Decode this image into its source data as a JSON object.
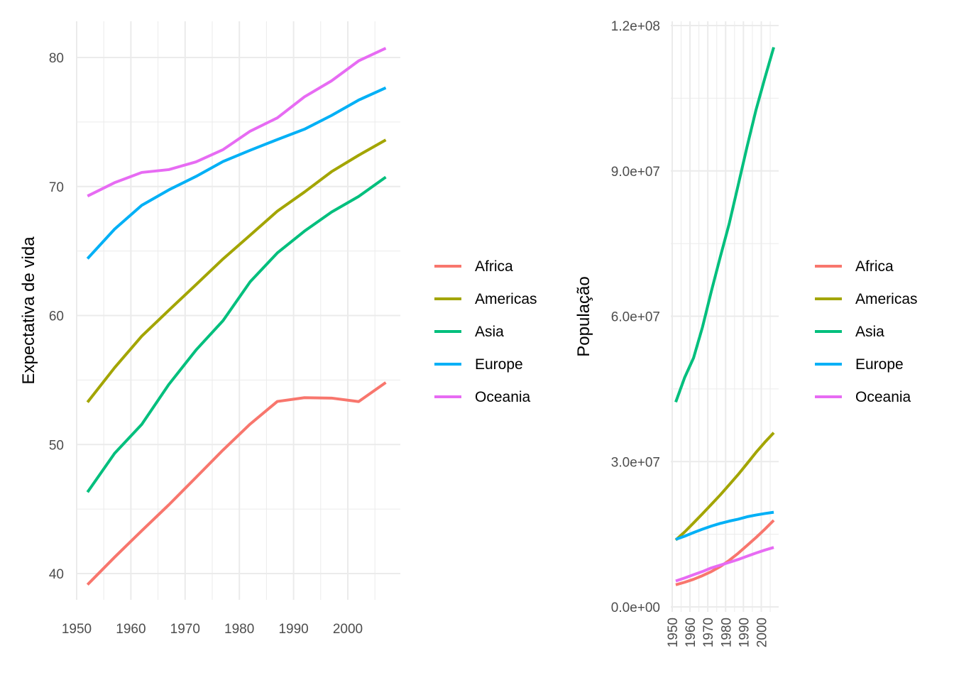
{
  "chart_data": [
    {
      "type": "line",
      "xlabel": "",
      "ylabel": "Expectativa de vida",
      "x": [
        1952,
        1957,
        1962,
        1967,
        1972,
        1977,
        1982,
        1987,
        1992,
        1997,
        2002,
        2007
      ],
      "xticks": [
        1950,
        1960,
        1970,
        1980,
        1990,
        2000
      ],
      "yticks": [
        40,
        50,
        60,
        70,
        80
      ],
      "xlim": [
        1949,
        2010
      ],
      "ylim": [
        37.3,
        82.6
      ],
      "grid": true,
      "legend": "right",
      "series": [
        {
          "name": "Africa",
          "color": "#F8766D",
          "values": [
            39.14,
            41.27,
            43.32,
            45.33,
            47.45,
            49.58,
            51.59,
            53.34,
            53.63,
            53.6,
            53.33,
            54.81
          ]
        },
        {
          "name": "Americas",
          "color": "#A3A500",
          "values": [
            53.28,
            55.96,
            58.4,
            60.41,
            62.39,
            64.39,
            66.23,
            68.09,
            69.57,
            71.15,
            72.42,
            73.61
          ]
        },
        {
          "name": "Asia",
          "color": "#00BF7D",
          "values": [
            46.31,
            49.32,
            51.56,
            54.66,
            57.32,
            59.61,
            62.62,
            64.85,
            66.54,
            68.02,
            69.23,
            70.73
          ]
        },
        {
          "name": "Europe",
          "color": "#00B0F6",
          "values": [
            64.41,
            66.7,
            68.54,
            69.74,
            70.78,
            71.94,
            72.81,
            73.64,
            74.44,
            75.51,
            76.7,
            77.65
          ]
        },
        {
          "name": "Oceania",
          "color": "#E76BF3",
          "values": [
            69.26,
            70.3,
            71.09,
            71.31,
            71.91,
            72.86,
            74.29,
            75.32,
            76.95,
            78.19,
            79.74,
            80.72
          ]
        }
      ]
    },
    {
      "type": "line",
      "xlabel": "",
      "ylabel": "População",
      "x": [
        1952,
        1957,
        1962,
        1967,
        1972,
        1977,
        1982,
        1987,
        1992,
        1997,
        2002,
        2007
      ],
      "xticks": [
        1950,
        1960,
        1970,
        1980,
        1990,
        2000
      ],
      "xtick_labels": [
        "1950",
        "1960",
        "1970",
        "1980",
        "1990",
        "2000"
      ],
      "yticks": [
        0,
        30000000,
        60000000,
        90000000,
        120000000
      ],
      "ytick_labels": [
        "0.0e+00",
        "3.0e+07",
        "6.0e+07",
        "9.0e+07",
        "1.2e+08"
      ],
      "grid": true,
      "legend": "right",
      "series": [
        {
          "name": "Africa",
          "color": "#F8766D",
          "values": [
            4570010,
            5093033,
            5702247,
            6447875,
            7305376,
            8328097,
            9602857,
            11054502,
            12674645,
            14304480,
            16033152,
            17875763
          ]
        },
        {
          "name": "Americas",
          "color": "#A3A500",
          "values": [
            13806098,
            15478157,
            17330810,
            19229865,
            21175368,
            23122708,
            25211637,
            27310159,
            29570964,
            31876016,
            33990910,
            35954847
          ]
        },
        {
          "name": "Asia",
          "color": "#00BF7D",
          "values": [
            42283556,
            47356988,
            51404763,
            57747361,
            65180977,
            72257987,
            79095018,
            87006690,
            94948248,
            102523803,
            109145521,
            115513752
          ]
        },
        {
          "name": "Europe",
          "color": "#00B0F6",
          "values": [
            13937362,
            14596345,
            15345172,
            16039299,
            16687835,
            17238818,
            17708897,
            18103139,
            18604760,
            18964805,
            19274129,
            19536618
          ]
        },
        {
          "name": "Oceania",
          "color": "#E76BF3",
          "values": [
            5343003,
            5970988,
            6641759,
            7300207,
            8053050,
            8619500,
            9197425,
            9787208,
            10459826,
            11120715,
            11727414,
            12274974
          ]
        }
      ]
    }
  ]
}
